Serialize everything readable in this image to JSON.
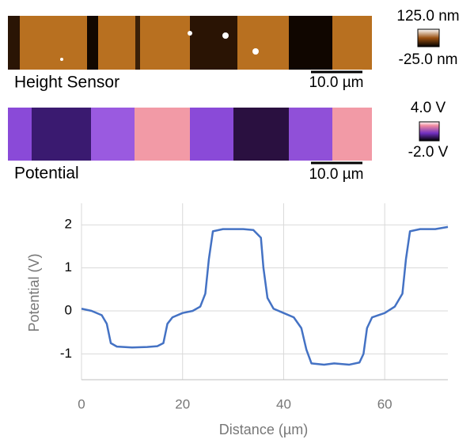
{
  "panels": [
    {
      "label": "Height Sensor",
      "scale_bar": "10.0 µm",
      "color_max": "125.0 nm",
      "color_min": "-25.0 nm"
    },
    {
      "label": "Potential",
      "scale_bar": "10.0 µm",
      "color_max": "4.0 V",
      "color_min": "-2.0 V"
    }
  ],
  "chart_data": {
    "type": "line",
    "x_label": "Distance (µm)",
    "y_label": "Potential (V)",
    "x": [
      0,
      2,
      4,
      5,
      5.8,
      7,
      10,
      13,
      15,
      16.2,
      17,
      18,
      20,
      22,
      23.5,
      24.5,
      25.2,
      26,
      28,
      32,
      34,
      35.5,
      36,
      36.8,
      38,
      40,
      42,
      43.5,
      44.5,
      45.5,
      48,
      50,
      53,
      55,
      55.8,
      56.5,
      57.5,
      60,
      62,
      63.5,
      64.2,
      65,
      67,
      70,
      72.5
    ],
    "series": [
      {
        "color": "#4472c4",
        "values": [
          0.05,
          0,
          -0.1,
          -0.3,
          -0.75,
          -0.83,
          -0.85,
          -0.84,
          -0.82,
          -0.75,
          -0.3,
          -0.15,
          -0.05,
          0,
          0.1,
          0.4,
          1.2,
          1.85,
          1.9,
          1.9,
          1.88,
          1.7,
          1.0,
          0.3,
          0.05,
          -0.05,
          -0.15,
          -0.4,
          -0.9,
          -1.22,
          -1.25,
          -1.22,
          -1.25,
          -1.2,
          -1.0,
          -0.4,
          -0.15,
          -0.05,
          0.1,
          0.4,
          1.2,
          1.85,
          1.9,
          1.9,
          1.95
        ]
      }
    ],
    "xlim": [
      0,
      72.5
    ],
    "xticks": [
      0,
      20,
      40,
      60
    ],
    "ylim": [
      -1.6,
      2.5
    ],
    "yticks": [
      -1,
      0,
      1,
      2
    ],
    "grid": true
  }
}
